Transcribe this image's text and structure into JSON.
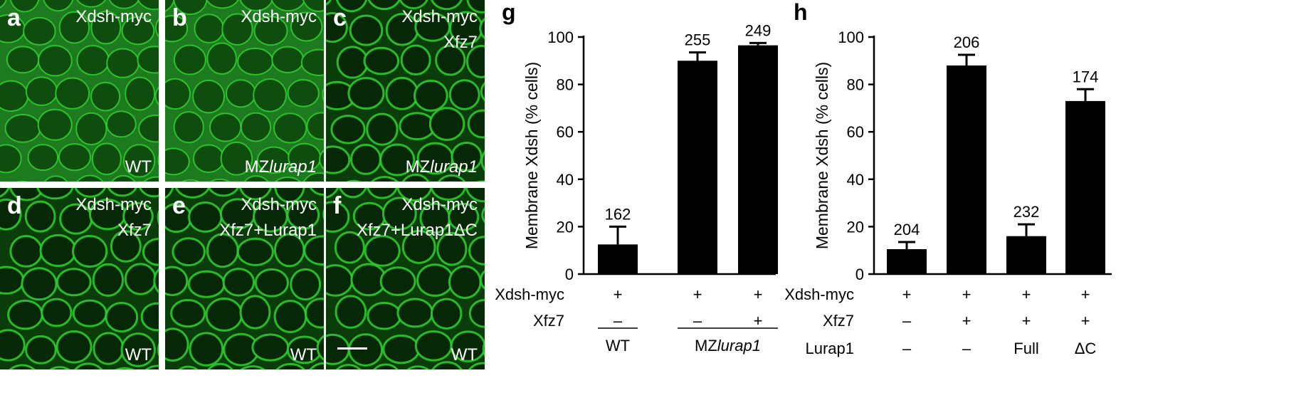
{
  "micrographs": [
    {
      "label": "a",
      "top_lines": [
        "Xdsh-myc"
      ],
      "bottom": "WT",
      "bottom_italic": ""
    },
    {
      "label": "b",
      "top_lines": [
        "Xdsh-myc"
      ],
      "bottom": "MZ",
      "bottom_italic": "lurap1"
    },
    {
      "label": "c",
      "top_lines": [
        "Xdsh-myc",
        "Xfz7"
      ],
      "bottom": "MZ",
      "bottom_italic": "lurap1"
    },
    {
      "label": "d",
      "top_lines": [
        "Xdsh-myc",
        "Xfz7"
      ],
      "bottom": "WT",
      "bottom_italic": ""
    },
    {
      "label": "e",
      "top_lines": [
        "Xdsh-myc",
        "Xfz7+Lurap1"
      ],
      "bottom": "WT",
      "bottom_italic": ""
    },
    {
      "label": "f",
      "top_lines": [
        "Xdsh-myc",
        "Xfz7+Lurap1ΔC"
      ],
      "bottom": "WT",
      "bottom_italic": ""
    }
  ],
  "colors": {
    "bar": "#000000",
    "cell_green": "#2fd12f",
    "background_green": "#0b3d0b"
  },
  "chart_data": [
    {
      "type": "bar",
      "panel_label": "g",
      "title": "",
      "ylabel": "Membrane Xdsh (% cells)",
      "ylim": [
        0,
        100
      ],
      "yticks": [
        0,
        20,
        40,
        60,
        80,
        100
      ],
      "values": [
        12.5,
        90,
        96.5
      ],
      "errors": [
        7.5,
        3.5,
        1
      ],
      "n_labels": [
        "162",
        "255",
        "249"
      ],
      "condition_rows": [
        {
          "label": "Xdsh-myc",
          "values": [
            "+",
            "+",
            "+"
          ]
        },
        {
          "label": "Xfz7",
          "values": [
            "–",
            "–",
            "+"
          ]
        }
      ],
      "groups": [
        {
          "label": "WT",
          "italic": "",
          "start": 0,
          "end": 0
        },
        {
          "label": "MZ",
          "italic": "lurap1",
          "start": 1,
          "end": 2
        }
      ]
    },
    {
      "type": "bar",
      "panel_label": "h",
      "title": "",
      "ylabel": "Membrane Xdsh (% cells)",
      "ylim": [
        0,
        100
      ],
      "yticks": [
        0,
        20,
        40,
        60,
        80,
        100
      ],
      "values": [
        10.5,
        88,
        16,
        73
      ],
      "errors": [
        3,
        4.5,
        5,
        5
      ],
      "n_labels": [
        "204",
        "206",
        "232",
        "174"
      ],
      "condition_rows": [
        {
          "label": "Xdsh-myc",
          "values": [
            "+",
            "+",
            "+",
            "+"
          ]
        },
        {
          "label": "Xfz7",
          "values": [
            "–",
            "+",
            "+",
            "+"
          ]
        },
        {
          "label": "Lurap1",
          "values": [
            "–",
            "–",
            "Full",
            "ΔC"
          ]
        }
      ],
      "groups": []
    }
  ]
}
